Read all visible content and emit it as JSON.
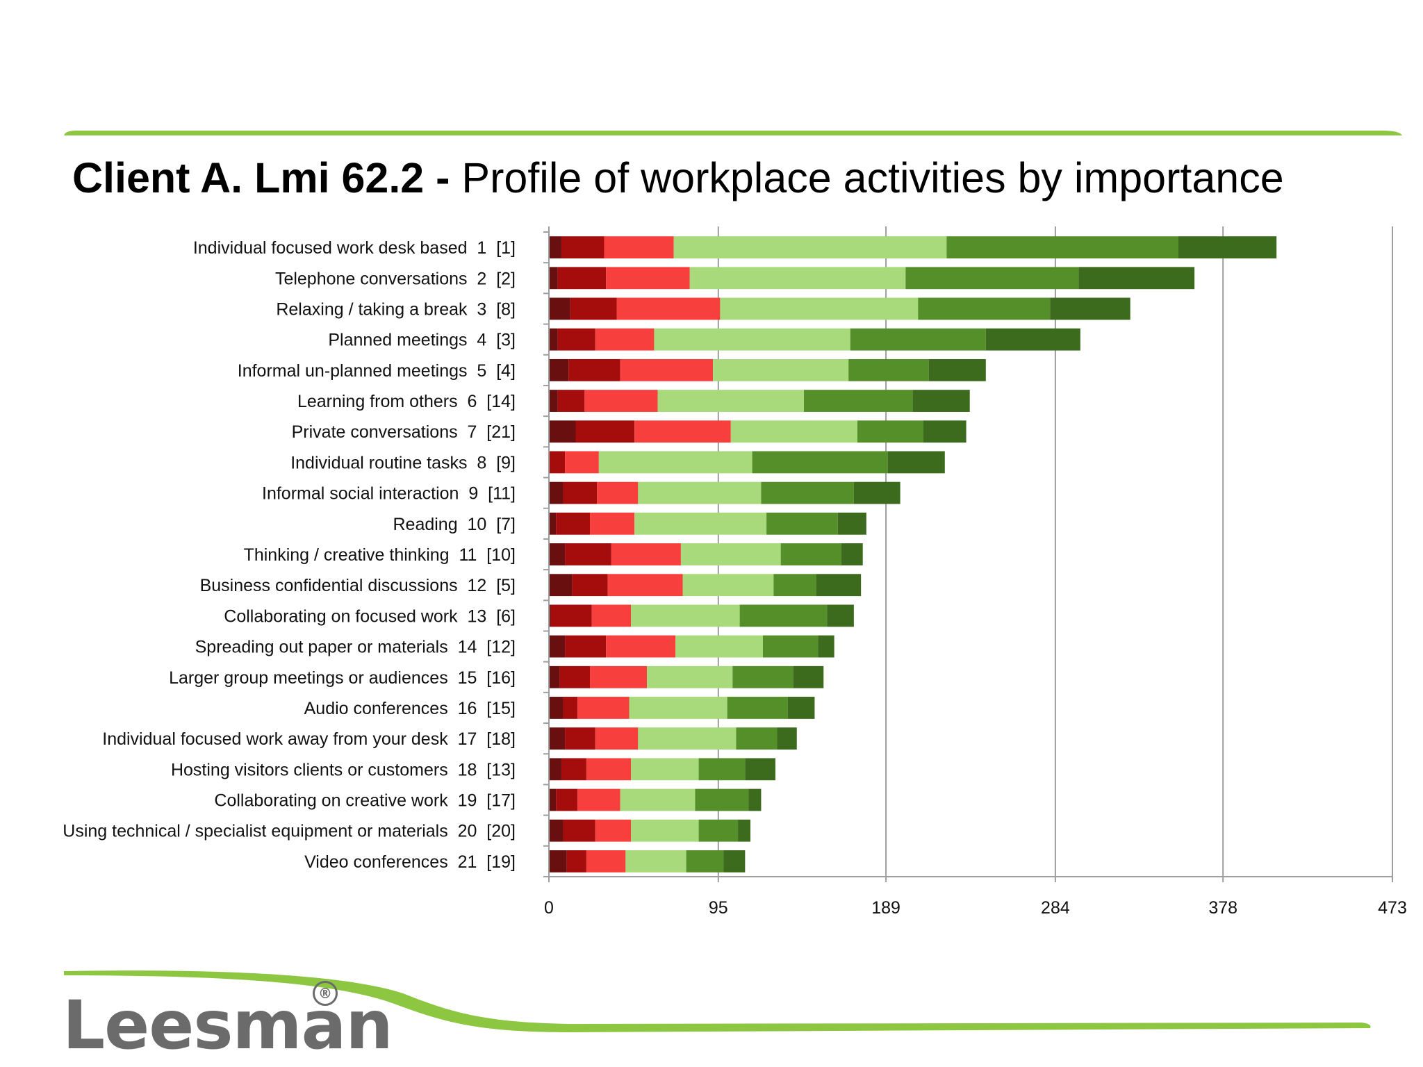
{
  "title": {
    "bold": "Client A. Lmi 62.2 -",
    "normal": "Profile of workplace activities by importance"
  },
  "logo": {
    "text": "Leesman",
    "registered": "®"
  },
  "colors": {
    "accent_green": "#8dc641",
    "segments": [
      "#6a0f0f",
      "#a50d0d",
      "#f7403d",
      "#a8d97b",
      "#548f2a",
      "#3d6b1d"
    ],
    "gridline": "#9e9e9e"
  },
  "chart_data": {
    "type": "bar",
    "orientation": "horizontal",
    "stacked": true,
    "title": "",
    "xlabel": "",
    "ylabel": "",
    "xlim": [
      0,
      473
    ],
    "xticks": [
      0,
      95,
      189,
      284,
      378,
      473
    ],
    "grid": true,
    "legend": "none",
    "categories": [
      "Individual focused work desk based  1  [1]",
      "Telephone conversations  2  [2]",
      "Relaxing / taking a break  3  [8]",
      "Planned meetings  4  [3]",
      "Informal un-planned meetings  5  [4]",
      "Learning from others  6  [14]",
      "Private conversations  7  [21]",
      "Individual routine tasks  8  [9]",
      "Informal social interaction  9  [11]",
      "Reading  10  [7]",
      "Thinking / creative thinking  11  [10]",
      "Business confidential discussions  12  [5]",
      "Collaborating on focused work  13  [6]",
      "Spreading out paper or materials  14  [12]",
      "Larger group meetings or audiences  15  [16]",
      "Audio conferences  16  [15]",
      "Individual focused work away from your desk  17  [18]",
      "Hosting visitors clients or customers  18  [13]",
      "Collaborating on creative work  19  [17]",
      "Using technical / specialist equipment or materials  20  [20]",
      "Video conferences  21  [19]"
    ],
    "series": [
      {
        "values": [
          7,
          5,
          12,
          5,
          11,
          5,
          15,
          0,
          8,
          4,
          9,
          13,
          1,
          9,
          6,
          8,
          9,
          7,
          4,
          8,
          10
        ]
      },
      {
        "values": [
          24,
          27,
          26,
          21,
          29,
          15,
          33,
          9,
          19,
          19,
          26,
          20,
          23,
          23,
          17,
          8,
          17,
          14,
          12,
          18,
          11
        ]
      },
      {
        "values": [
          39,
          47,
          58,
          33,
          52,
          41,
          54,
          19,
          23,
          25,
          39,
          42,
          22,
          39,
          32,
          29,
          24,
          25,
          24,
          20,
          22
        ]
      },
      {
        "values": [
          153,
          121,
          111,
          110,
          76,
          82,
          71,
          86,
          69,
          74,
          56,
          51,
          61,
          49,
          48,
          55,
          55,
          38,
          42,
          38,
          34
        ]
      },
      {
        "values": [
          130,
          97,
          74,
          76,
          45,
          61,
          37,
          76,
          52,
          40,
          34,
          24,
          49,
          31,
          34,
          34,
          23,
          26,
          30,
          22,
          21
        ]
      },
      {
        "values": [
          55,
          65,
          45,
          53,
          32,
          32,
          24,
          32,
          26,
          16,
          12,
          25,
          15,
          9,
          17,
          15,
          11,
          17,
          7,
          7,
          12
        ]
      }
    ]
  }
}
